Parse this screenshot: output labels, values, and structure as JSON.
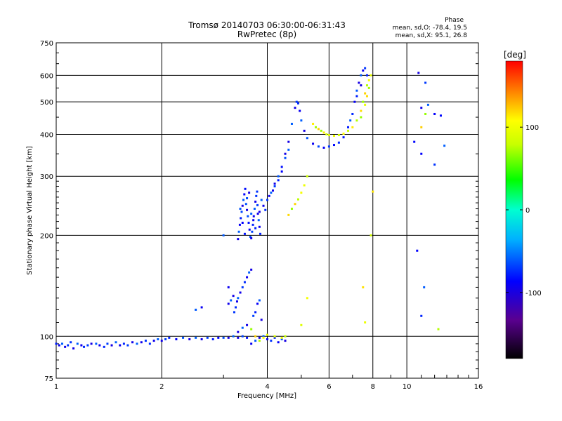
{
  "chart_data": {
    "type": "scatter",
    "title": "Tromsø 20140703 06:30:00-06:31:43",
    "subtitle": "RwPretec (8p)",
    "phase_header": "Phase",
    "phase_stats": [
      "mean, sd,O:  -78.4, 19.5",
      "mean, sd,X:   95.1, 26.8"
    ],
    "xlabel": "Frequency [MHz]",
    "ylabel": "Stationary phase Virtual Height [km]",
    "xscale": "log",
    "yscale": "log",
    "xlim": [
      1,
      16
    ],
    "ylim": [
      75,
      750
    ],
    "xticks": [
      1,
      2,
      4,
      6,
      8,
      10,
      16
    ],
    "yticks": [
      75,
      100,
      200,
      300,
      400,
      500,
      600,
      750
    ],
    "grid": true,
    "colorbar": {
      "label": "[deg]",
      "range": [
        -180,
        180
      ],
      "ticks": [
        -100,
        0,
        100
      ]
    },
    "series": [
      {
        "mode": "O",
        "phase_mean": -78.4,
        "phase_sd": 19.5,
        "points": [
          [
            1.0,
            95
          ],
          [
            1.02,
            94
          ],
          [
            1.04,
            95
          ],
          [
            1.06,
            93
          ],
          [
            1.08,
            94
          ],
          [
            1.1,
            96
          ],
          [
            1.12,
            92
          ],
          [
            1.15,
            95
          ],
          [
            1.18,
            94
          ],
          [
            1.2,
            93
          ],
          [
            1.23,
            94
          ],
          [
            1.26,
            95
          ],
          [
            1.3,
            95
          ],
          [
            1.33,
            94
          ],
          [
            1.37,
            93
          ],
          [
            1.4,
            95
          ],
          [
            1.44,
            94
          ],
          [
            1.48,
            96
          ],
          [
            1.52,
            94
          ],
          [
            1.56,
            95
          ],
          [
            1.6,
            94
          ],
          [
            1.65,
            96
          ],
          [
            1.7,
            95
          ],
          [
            1.75,
            96
          ],
          [
            1.8,
            97
          ],
          [
            1.85,
            95
          ],
          [
            1.9,
            97
          ],
          [
            1.95,
            98
          ],
          [
            2.0,
            97
          ],
          [
            2.05,
            98
          ],
          [
            2.1,
            99
          ],
          [
            2.2,
            98
          ],
          [
            2.3,
            99
          ],
          [
            2.4,
            98
          ],
          [
            2.5,
            99
          ],
          [
            2.6,
            98
          ],
          [
            2.7,
            99
          ],
          [
            2.8,
            98
          ],
          [
            2.9,
            99
          ],
          [
            3.0,
            99
          ],
          [
            3.1,
            99
          ],
          [
            3.2,
            100
          ],
          [
            3.3,
            99
          ],
          [
            3.4,
            100
          ],
          [
            3.5,
            99
          ],
          [
            3.3,
            103
          ],
          [
            3.4,
            106
          ],
          [
            3.5,
            108
          ],
          [
            3.1,
            125
          ],
          [
            3.15,
            128
          ],
          [
            3.2,
            132
          ],
          [
            3.22,
            118
          ],
          [
            3.25,
            122
          ],
          [
            3.28,
            127
          ],
          [
            3.3,
            130
          ],
          [
            3.35,
            135
          ],
          [
            3.4,
            140
          ],
          [
            3.45,
            145
          ],
          [
            3.5,
            150
          ],
          [
            3.55,
            155
          ],
          [
            3.6,
            158
          ],
          [
            3.65,
            115
          ],
          [
            3.7,
            118
          ],
          [
            3.75,
            125
          ],
          [
            3.8,
            128
          ],
          [
            3.85,
            112
          ],
          [
            3.3,
            195
          ],
          [
            3.32,
            205
          ],
          [
            3.34,
            215
          ],
          [
            3.36,
            225
          ],
          [
            3.38,
            235
          ],
          [
            3.4,
            245
          ],
          [
            3.42,
            255
          ],
          [
            3.44,
            265
          ],
          [
            3.46,
            275
          ],
          [
            3.48,
            248
          ],
          [
            3.5,
            238
          ],
          [
            3.52,
            228
          ],
          [
            3.54,
            218
          ],
          [
            3.56,
            208
          ],
          [
            3.58,
            198
          ],
          [
            3.6,
            196
          ],
          [
            3.62,
            205
          ],
          [
            3.64,
            215
          ],
          [
            3.66,
            228
          ],
          [
            3.68,
            240
          ],
          [
            3.7,
            252
          ],
          [
            3.72,
            262
          ],
          [
            3.74,
            270
          ],
          [
            3.76,
            232
          ],
          [
            3.78,
            222
          ],
          [
            3.8,
            212
          ],
          [
            3.82,
            202
          ],
          [
            3.35,
            240
          ],
          [
            3.4,
            218
          ],
          [
            3.45,
            202
          ],
          [
            3.5,
            258
          ],
          [
            3.55,
            268
          ],
          [
            3.6,
            232
          ],
          [
            3.65,
            222
          ],
          [
            3.7,
            210
          ],
          [
            3.75,
            246
          ],
          [
            3.8,
            235
          ],
          [
            3.85,
            255
          ],
          [
            3.9,
            245
          ],
          [
            3.95,
            238
          ],
          [
            4.0,
            255
          ],
          [
            4.05,
            262
          ],
          [
            4.1,
            268
          ],
          [
            4.15,
            272
          ],
          [
            4.2,
            280
          ],
          [
            4.3,
            292
          ],
          [
            4.4,
            310
          ],
          [
            4.5,
            340
          ],
          [
            4.6,
            380
          ],
          [
            4.7,
            430
          ],
          [
            4.8,
            480
          ],
          [
            4.85,
            500
          ],
          [
            4.9,
            495
          ],
          [
            4.95,
            470
          ],
          [
            5.0,
            440
          ],
          [
            5.1,
            410
          ],
          [
            5.2,
            390
          ],
          [
            5.4,
            375
          ],
          [
            5.6,
            368
          ],
          [
            5.8,
            365
          ],
          [
            6.0,
            368
          ],
          [
            6.2,
            372
          ],
          [
            6.4,
            378
          ],
          [
            6.6,
            392
          ],
          [
            6.8,
            420
          ],
          [
            7.0,
            460
          ],
          [
            7.1,
            500
          ],
          [
            7.2,
            540
          ],
          [
            7.3,
            570
          ],
          [
            7.4,
            600
          ],
          [
            7.5,
            620
          ],
          [
            7.6,
            630
          ],
          [
            7.7,
            600
          ],
          [
            7.4,
            560
          ],
          [
            7.2,
            520
          ],
          [
            6.9,
            440
          ],
          [
            4.3,
            300
          ],
          [
            4.5,
            350
          ],
          [
            4.6,
            360
          ],
          [
            4.4,
            320
          ],
          [
            4.2,
            285
          ],
          [
            3.6,
            95
          ],
          [
            3.7,
            97
          ],
          [
            3.8,
            99
          ],
          [
            3.9,
            100
          ],
          [
            4.0,
            98
          ],
          [
            4.1,
            97
          ],
          [
            4.2,
            99
          ],
          [
            4.3,
            96
          ],
          [
            4.4,
            98
          ],
          [
            4.5,
            97
          ],
          [
            2.5,
            120
          ],
          [
            2.6,
            122
          ],
          [
            3.0,
            200
          ],
          [
            3.1,
            140
          ],
          [
            10.8,
            610
          ],
          [
            11.3,
            570
          ],
          [
            11.0,
            480
          ],
          [
            11.5,
            490
          ],
          [
            12.0,
            460
          ],
          [
            12.5,
            455
          ],
          [
            10.5,
            380
          ],
          [
            11.0,
            350
          ],
          [
            12.0,
            325
          ],
          [
            12.8,
            370
          ],
          [
            10.7,
            180
          ],
          [
            11.2,
            140
          ],
          [
            11.0,
            115
          ]
        ]
      },
      {
        "mode": "X",
        "phase_mean": 95.1,
        "phase_sd": 26.8,
        "points": [
          [
            3.6,
            105
          ],
          [
            3.7,
            100
          ],
          [
            3.8,
            97
          ],
          [
            3.9,
            99
          ],
          [
            4.0,
            101
          ],
          [
            4.2,
            100
          ],
          [
            4.4,
            99
          ],
          [
            4.5,
            100
          ],
          [
            4.6,
            230
          ],
          [
            4.7,
            240
          ],
          [
            4.8,
            248
          ],
          [
            4.9,
            256
          ],
          [
            5.0,
            268
          ],
          [
            5.1,
            282
          ],
          [
            5.2,
            300
          ],
          [
            5.4,
            430
          ],
          [
            5.5,
            420
          ],
          [
            5.6,
            415
          ],
          [
            5.7,
            410
          ],
          [
            5.8,
            405
          ],
          [
            5.9,
            400
          ],
          [
            6.0,
            398
          ],
          [
            6.2,
            396
          ],
          [
            6.4,
            398
          ],
          [
            6.6,
            402
          ],
          [
            6.8,
            410
          ],
          [
            7.0,
            420
          ],
          [
            7.2,
            440
          ],
          [
            7.4,
            470
          ],
          [
            7.5,
            500
          ],
          [
            7.6,
            530
          ],
          [
            7.7,
            560
          ],
          [
            7.8,
            580
          ],
          [
            7.9,
            600
          ],
          [
            7.8,
            550
          ],
          [
            7.7,
            520
          ],
          [
            7.6,
            490
          ],
          [
            7.4,
            450
          ],
          [
            5.0,
            108
          ],
          [
            5.2,
            130
          ],
          [
            7.6,
            110
          ],
          [
            7.5,
            140
          ],
          [
            7.9,
            200
          ],
          [
            8.0,
            270
          ],
          [
            11.0,
            420
          ],
          [
            11.3,
            460
          ],
          [
            12.3,
            105
          ]
        ]
      }
    ]
  }
}
